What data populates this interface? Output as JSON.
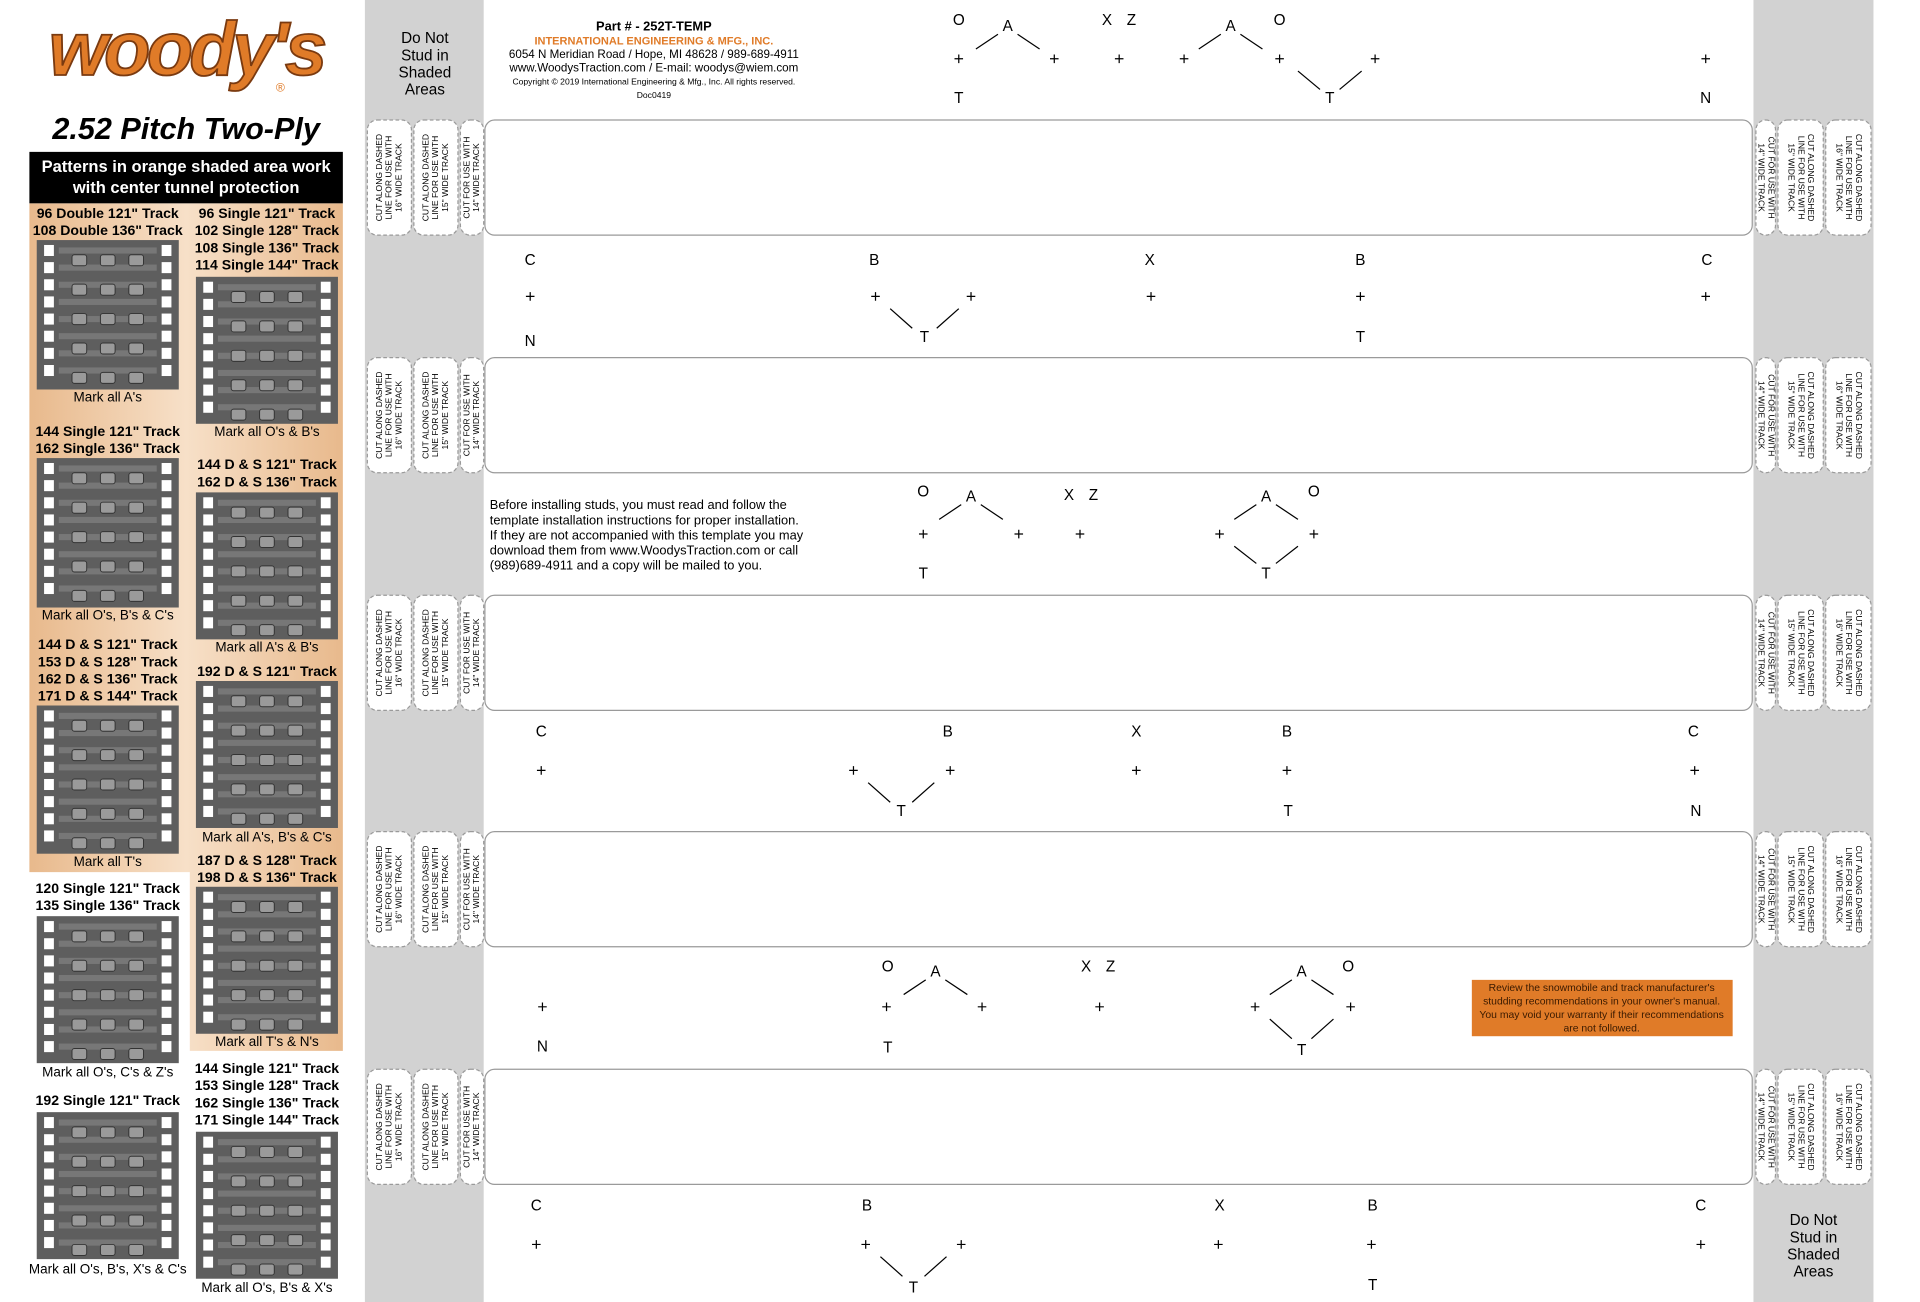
{
  "logo": {
    "wordmark": "woody's",
    "registered": "®"
  },
  "title": "2.52 Pitch Two-Ply",
  "banner": [
    "Patterns in orange shaded area work",
    "with center tunnel protection"
  ],
  "pattern_groups": [
    {
      "tracks": [
        "96 Double 121\" Track",
        "108 Double 136\" Track"
      ],
      "caption": "Mark all A's"
    },
    {
      "tracks": [
        "144 Single 121\" Track",
        "162 Single 136\" Track"
      ],
      "caption": "Mark all O's, B's & C's"
    },
    {
      "tracks": [
        "144 D & S 121\" Track",
        "153 D & S 128\" Track",
        "162 D & S 136\" Track",
        "171 D & S 144\" Track"
      ],
      "caption": "Mark all T's"
    },
    {
      "tracks": [
        "120 Single 121\" Track",
        "135 Single 136\" Track"
      ],
      "caption": "Mark all O's, C's & Z's"
    },
    {
      "tracks": [
        "192 Single 121\" Track"
      ],
      "caption": "Mark all O's, B's, X's & C's"
    },
    {
      "tracks": [
        "96 Single 121\" Track",
        "102 Single 128\" Track",
        "108 Single 136\" Track",
        "114 Single 144\" Track"
      ],
      "caption": "Mark all O's & B's"
    },
    {
      "tracks": [
        "144 D & S 121\" Track",
        "162 D & S 136\" Track"
      ],
      "caption": "Mark all A's & B's"
    },
    {
      "tracks": [
        "192 D & S 121\" Track"
      ],
      "caption": "Mark all A's, B's & C's"
    },
    {
      "tracks": [
        "187 D & S 128\" Track",
        "198 D & S 136\" Track"
      ],
      "caption": "Mark all T's & N's"
    },
    {
      "tracks": [
        "144 Single 121\" Track",
        "153 Single 128\" Track",
        "162 Single 136\" Track",
        "171 Single 144\" Track"
      ],
      "caption": "Mark all O's, B's & X's"
    }
  ],
  "shaded_note": [
    "Do Not",
    "Stud in",
    "Shaded",
    "Areas"
  ],
  "header": {
    "part": "Part # - 252T-TEMP",
    "company": "INTERNATIONAL ENGINEERING & MFG., INC.",
    "address": "6054 N Meridian Road / Hope, MI 48628 / 989-689-4911",
    "web": "www.WoodysTraction.com / E-mail: woodys@wiem.com",
    "copyright": "Copyright © 2019 International Engineering & Mfg., Inc. All rights reserved.",
    "doc": "Doc0419"
  },
  "instructions": [
    "Before installing studs, you must read and follow the",
    "template installation instructions for proper installation.",
    "If they are not accompanied with this template you may",
    "download them from www.WoodysTraction.com or call",
    "(989)689-4911 and a copy will be mailed to you."
  ],
  "warning": [
    "Review the snowmobile and track manufacturer's",
    "studding recommendations in your owner's manual.",
    "You may void your warranty if their recommendations",
    "are not followed."
  ],
  "cut_labels": {
    "left": [
      [
        "CUT ALONG DASHED",
        "LINE FOR USE WITH",
        "16\" WIDE TRACK"
      ],
      [
        "CUT ALONG DASHED",
        "LINE FOR USE WITH",
        "15\" WIDE TRACK"
      ],
      [
        "CUT FOR USE WITH",
        "14\" WIDE TRACK"
      ]
    ],
    "right": [
      [
        "CUT FOR USE WITH",
        "14\" WIDE TRACK"
      ],
      [
        "CUT ALONG DASHED",
        "LINE FOR USE WITH",
        "15\" WIDE TRACK"
      ],
      [
        "CUT ALONG DASHED",
        "LINE FOR USE WITH",
        "16\" WIDE TRACK"
      ]
    ]
  },
  "stud_rows": [
    {
      "letters": [
        "O",
        "A",
        "X",
        "Z",
        "A",
        "O",
        "T",
        "T",
        "N"
      ]
    },
    {
      "letters": [
        "C",
        "B",
        "X",
        "B",
        "C",
        "N",
        "T",
        "T"
      ]
    },
    {
      "letters": [
        "O",
        "A",
        "X",
        "Z",
        "A",
        "O",
        "T",
        "T"
      ]
    },
    {
      "letters": [
        "C",
        "B",
        "X",
        "B",
        "C",
        "T",
        "T",
        "N"
      ]
    },
    {
      "letters": [
        "O",
        "A",
        "X",
        "Z",
        "A",
        "O",
        "N",
        "T",
        "T"
      ]
    },
    {
      "letters": [
        "C",
        "B",
        "X",
        "B",
        "C",
        "T",
        "T"
      ]
    }
  ]
}
